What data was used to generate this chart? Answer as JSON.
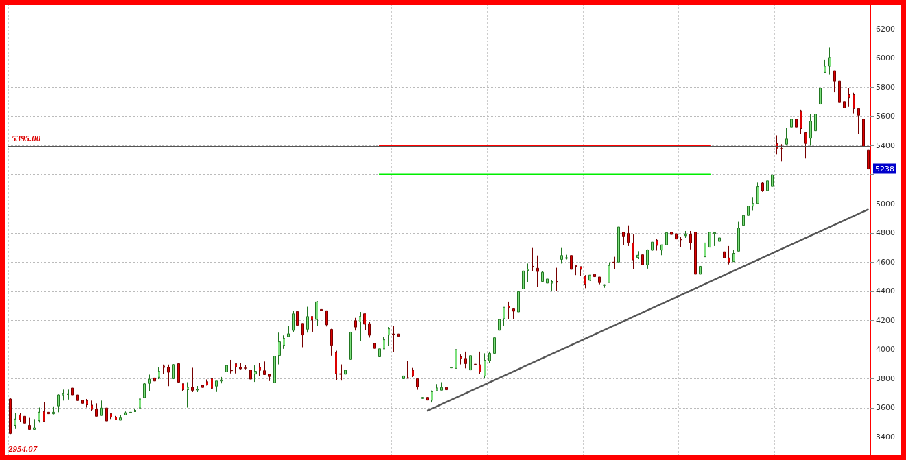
{
  "chart_data": {
    "type": "candlestick",
    "categories": [
      null,
      null,
      null,
      null,
      null,
      null,
      null,
      null,
      null,
      null,
      null,
      null,
      null,
      null,
      null,
      null,
      null,
      null,
      null,
      null,
      null,
      null,
      null,
      null,
      null,
      null,
      null,
      null,
      null,
      null,
      null,
      null,
      null,
      null,
      null,
      null,
      null,
      null,
      null,
      null,
      null,
      null,
      null,
      null,
      null,
      null,
      null,
      null,
      null,
      null,
      null,
      null,
      null,
      null,
      null,
      null,
      null,
      null,
      null,
      null,
      null,
      null,
      null,
      null,
      null,
      null,
      null,
      null,
      null,
      null,
      null,
      null,
      null,
      null,
      null,
      null,
      null,
      null,
      null,
      null,
      null,
      null,
      null,
      null,
      null,
      null,
      null,
      null,
      null,
      null,
      null,
      null,
      null,
      null,
      null,
      null,
      null,
      null,
      null,
      null,
      null,
      null,
      null,
      null,
      null,
      null,
      null,
      null,
      null,
      null,
      null,
      null,
      null,
      null,
      null,
      null,
      null,
      null,
      null,
      null,
      null,
      null,
      null,
      null,
      null,
      null,
      null,
      null,
      null,
      null,
      null,
      null,
      null,
      null,
      null,
      null,
      null,
      null,
      null,
      null,
      null,
      null,
      null,
      null,
      null,
      null,
      null,
      null,
      null,
      null,
      null,
      null,
      null,
      null,
      null,
      null,
      null,
      null,
      null,
      null,
      null,
      null,
      null,
      null,
      null,
      null,
      null,
      null,
      null,
      null,
      null,
      null,
      null,
      null,
      null,
      null,
      null,
      null,
      null,
      null
    ],
    "ohlc": [
      [
        3661,
        3665,
        3420,
        3424
      ],
      [
        3480,
        3563,
        3455,
        3523
      ],
      [
        3551,
        3566,
        3503,
        3518
      ],
      [
        3542,
        3566,
        3463,
        3495
      ],
      [
        3480,
        3531,
        3452,
        3452
      ],
      [
        3452,
        3523,
        3452,
        3463
      ],
      [
        3512,
        3602,
        3499,
        3570
      ],
      [
        3575,
        3638,
        3503,
        3507
      ],
      [
        3570,
        3632,
        3544,
        3559
      ],
      [
        3559,
        3610,
        3555,
        3570
      ],
      [
        3613,
        3692,
        3570,
        3689
      ],
      [
        3689,
        3725,
        3650,
        3700
      ],
      [
        3692,
        3725,
        3657,
        3697
      ],
      [
        3736,
        3738,
        3638,
        3689
      ],
      [
        3689,
        3700,
        3638,
        3650
      ],
      [
        3653,
        3700,
        3631,
        3631
      ],
      [
        3650,
        3661,
        3602,
        3621
      ],
      [
        3618,
        3650,
        3578,
        3590
      ],
      [
        3591,
        3631,
        3542,
        3542
      ],
      [
        3547,
        3650,
        3547,
        3599
      ],
      [
        3599,
        3599,
        3507,
        3510
      ],
      [
        3559,
        3559,
        3523,
        3536
      ],
      [
        3536,
        3544,
        3515,
        3518
      ],
      [
        3515,
        3551,
        3515,
        3531
      ],
      [
        3551,
        3575,
        3551,
        3567
      ],
      [
        3567,
        3613,
        3555,
        3570
      ],
      [
        3574,
        3594,
        3574,
        3583
      ],
      [
        3599,
        3661,
        3599,
        3661
      ],
      [
        3670,
        3772,
        3670,
        3765
      ],
      [
        3768,
        3828,
        3717,
        3797
      ],
      [
        3805,
        3970,
        3784,
        3784
      ],
      [
        3810,
        3877,
        3797,
        3850
      ],
      [
        3886,
        3897,
        3831,
        3878
      ],
      [
        3878,
        3897,
        3749,
        3844
      ],
      [
        3800,
        3900,
        3797,
        3897
      ],
      [
        3903,
        3903,
        3768,
        3776
      ],
      [
        3765,
        3765,
        3715,
        3725
      ],
      [
        3725,
        3776,
        3602,
        3741
      ],
      [
        3741,
        3875,
        3708,
        3720
      ],
      [
        3722,
        3750,
        3708,
        3728
      ],
      [
        3755,
        3755,
        3718,
        3740
      ],
      [
        3779,
        3795,
        3753,
        3757
      ],
      [
        3800,
        3800,
        3730,
        3735
      ],
      [
        3749,
        3784,
        3709,
        3784
      ],
      [
        3784,
        3812,
        3768,
        3792
      ],
      [
        3847,
        3891,
        3807,
        3891
      ],
      [
        3858,
        3929,
        3836,
        3855
      ],
      [
        3902,
        3902,
        3836,
        3881
      ],
      [
        3878,
        3910,
        3864,
        3868
      ],
      [
        3874,
        3894,
        3864,
        3871
      ],
      [
        3860,
        3883,
        3797,
        3797
      ],
      [
        3832,
        3891,
        3778,
        3851
      ],
      [
        3878,
        3910,
        3820,
        3858
      ],
      [
        3855,
        3918,
        3828,
        3828
      ],
      [
        3831,
        3831,
        3784,
        3815
      ],
      [
        3773,
        3981,
        3773,
        3954
      ],
      [
        3959,
        4116,
        3898,
        4053
      ],
      [
        4029,
        4097,
        4005,
        4076
      ],
      [
        4089,
        4163,
        4089,
        4108
      ],
      [
        4131,
        4266,
        4119,
        4245
      ],
      [
        4261,
        4443,
        4103,
        4166
      ],
      [
        4179,
        4179,
        4016,
        4100
      ],
      [
        4139,
        4293,
        4116,
        4226
      ],
      [
        4226,
        4226,
        4122,
        4203
      ],
      [
        4206,
        4332,
        4163,
        4327
      ],
      [
        4275,
        4277,
        4158,
        4268
      ],
      [
        4266,
        4266,
        4158,
        4169
      ],
      [
        4138,
        4142,
        3958,
        4029
      ],
      [
        3981,
        3992,
        3792,
        3834
      ],
      [
        3834,
        3898,
        3787,
        3830
      ],
      [
        3831,
        3909,
        3806,
        3858
      ],
      [
        3932,
        4122,
        3932,
        4119
      ],
      [
        4198,
        4217,
        4130,
        4154
      ],
      [
        4190,
        4258,
        4060,
        4226
      ],
      [
        4245,
        4245,
        4135,
        4174
      ],
      [
        4177,
        4190,
        4082,
        4098
      ],
      [
        4043,
        4043,
        3932,
        4008
      ],
      [
        3950,
        4005,
        3942,
        4005
      ],
      [
        4005,
        4084,
        4005,
        4067
      ],
      [
        4100,
        4154,
        4027,
        4142
      ],
      [
        4107,
        4163,
        3984,
        4103
      ],
      [
        4107,
        4182,
        4068,
        4090
      ],
      [
        3800,
        3863,
        3782,
        3819
      ],
      [
        3806,
        3924,
        3803,
        3803
      ],
      [
        3858,
        3874,
        3811,
        3819
      ],
      [
        3800,
        3800,
        3724,
        3744
      ],
      [
        3664,
        3672,
        3610,
        3672
      ],
      [
        3672,
        3681,
        3653,
        3653
      ],
      [
        3653,
        3719,
        3637,
        3711
      ],
      [
        3721,
        3763,
        3721,
        3736
      ],
      [
        3721,
        3776,
        3721,
        3740
      ],
      [
        3740,
        3778,
        3713,
        3724
      ],
      [
        3874,
        3879,
        3819,
        3879
      ],
      [
        3871,
        4000,
        3871,
        4000
      ],
      [
        3950,
        3966,
        3898,
        3939
      ],
      [
        3939,
        3986,
        3871,
        3903
      ],
      [
        3860,
        3958,
        3839,
        3958
      ],
      [
        3900,
        3942,
        3882,
        3898
      ],
      [
        3895,
        3986,
        3831,
        3847
      ],
      [
        3819,
        3974,
        3803,
        3926
      ],
      [
        3923,
        3986,
        3907,
        3974
      ],
      [
        3974,
        4136,
        3966,
        4081
      ],
      [
        4132,
        4216,
        4124,
        4206
      ],
      [
        4211,
        4290,
        4164,
        4290
      ],
      [
        4298,
        4329,
        4211,
        4287
      ],
      [
        4279,
        4279,
        4208,
        4263
      ],
      [
        4258,
        4397,
        4255,
        4397
      ],
      [
        4416,
        4598,
        4397,
        4539
      ],
      [
        4542,
        4590,
        4464,
        4550
      ],
      [
        4571,
        4697,
        4539,
        4566
      ],
      [
        4558,
        4645,
        4432,
        4535
      ],
      [
        4467,
        4539,
        4464,
        4530
      ],
      [
        4456,
        4495,
        4452,
        4484
      ],
      [
        4456,
        4476,
        4403,
        4467
      ],
      [
        4467,
        4561,
        4403,
        4462
      ],
      [
        4618,
        4697,
        4590,
        4645
      ],
      [
        4625,
        4650,
        4618,
        4630
      ],
      [
        4645,
        4645,
        4514,
        4550
      ],
      [
        4577,
        4577,
        4511,
        4571
      ],
      [
        4569,
        4569,
        4503,
        4550
      ],
      [
        4503,
        4511,
        4421,
        4448
      ],
      [
        4475,
        4511,
        4471,
        4511
      ],
      [
        4516,
        4566,
        4456,
        4500
      ],
      [
        4498,
        4498,
        4448,
        4459
      ],
      [
        4440,
        4448,
        4424,
        4445
      ],
      [
        4460,
        4598,
        4460,
        4577
      ],
      [
        4600,
        4636,
        4552,
        4597
      ],
      [
        4600,
        4841,
        4576,
        4841
      ],
      [
        4805,
        4805,
        4718,
        4778
      ],
      [
        4797,
        4852,
        4710,
        4734
      ],
      [
        4731,
        4789,
        4552,
        4615
      ],
      [
        4631,
        4675,
        4620,
        4647
      ],
      [
        4650,
        4650,
        4505,
        4581
      ],
      [
        4581,
        4687,
        4555,
        4683
      ],
      [
        4682,
        4737,
        4679,
        4737
      ],
      [
        4750,
        4761,
        4679,
        4715
      ],
      [
        4683,
        4718,
        4647,
        4718
      ],
      [
        4718,
        4802,
        4718,
        4802
      ],
      [
        4805,
        4818,
        4781,
        4789
      ],
      [
        4794,
        4818,
        4721,
        4758
      ],
      [
        4758,
        4773,
        4702,
        4753
      ],
      [
        4781,
        4813,
        4766,
        4789
      ],
      [
        4789,
        4813,
        4687,
        4731
      ],
      [
        4805,
        4813,
        4517,
        4517
      ],
      [
        4517,
        4571,
        4442,
        4571
      ],
      [
        4636,
        4731,
        4636,
        4731
      ],
      [
        4702,
        4805,
        4702,
        4805
      ],
      [
        4795,
        4805,
        4710,
        4802
      ],
      [
        4742,
        4789,
        4726,
        4766
      ],
      [
        4671,
        4694,
        4620,
        4628
      ],
      [
        4628,
        4710,
        4584,
        4600
      ],
      [
        4603,
        4683,
        4603,
        4660
      ],
      [
        4675,
        4876,
        4675,
        4833
      ],
      [
        4852,
        4990,
        4852,
        4920
      ],
      [
        4920,
        4993,
        4884,
        4984
      ],
      [
        4984,
        5042,
        4952,
        5002
      ],
      [
        5002,
        5145,
        5002,
        5116
      ],
      [
        5142,
        5150,
        5082,
        5090
      ],
      [
        5091,
        5157,
        5082,
        5157
      ],
      [
        5118,
        5228,
        5094,
        5197
      ],
      [
        5413,
        5469,
        5338,
        5381
      ],
      [
        5378,
        5409,
        5291,
        5375
      ],
      [
        5409,
        5520,
        5402,
        5444
      ],
      [
        5527,
        5661,
        5512,
        5580
      ],
      [
        5580,
        5646,
        5491,
        5527
      ],
      [
        5635,
        5646,
        5480,
        5516
      ],
      [
        5488,
        5488,
        5310,
        5414
      ],
      [
        5449,
        5614,
        5398,
        5567
      ],
      [
        5501,
        5661,
        5496,
        5614
      ],
      [
        5685,
        5842,
        5685,
        5792
      ],
      [
        5902,
        5989,
        5898,
        5942
      ],
      [
        5942,
        6071,
        5887,
        6003
      ],
      [
        5913,
        5913,
        5767,
        5842
      ],
      [
        5842,
        5842,
        5527,
        5696
      ],
      [
        5698,
        5698,
        5583,
        5657
      ],
      [
        5751,
        5795,
        5665,
        5727
      ],
      [
        5751,
        5764,
        5619,
        5653
      ],
      [
        5653,
        5653,
        5477,
        5606
      ],
      [
        5580,
        5580,
        5365,
        5389
      ],
      [
        5367,
        5381,
        5137,
        5238
      ]
    ],
    "series": [
      {
        "type": "line",
        "color": "#ff0000",
        "values": [
          null,
          null,
          null,
          null,
          null,
          null,
          null,
          null,
          null,
          null,
          null,
          null,
          null,
          null,
          null,
          null,
          null,
          null,
          null,
          null,
          null,
          null,
          null,
          null,
          null,
          null,
          null,
          null,
          null,
          null,
          null,
          null,
          null,
          null,
          null,
          null,
          null,
          null,
          null,
          null,
          null,
          null,
          null,
          null,
          null,
          null,
          null,
          null,
          null,
          null,
          null,
          null,
          null,
          null,
          null,
          null,
          null,
          null,
          null,
          null,
          null,
          null,
          null,
          null,
          null,
          null,
          null,
          null,
          null,
          null,
          null,
          null,
          null,
          null,
          null,
          null,
          null,
          5395,
          null,
          null,
          null,
          null,
          null,
          null,
          null,
          null,
          null,
          null,
          null,
          null,
          null,
          null,
          null,
          null,
          null,
          null,
          null,
          null,
          null,
          null,
          null,
          null,
          null,
          null,
          null,
          null,
          null,
          null,
          null,
          null,
          null,
          null,
          null,
          null,
          null,
          null,
          null,
          null,
          null,
          null,
          null,
          null,
          null,
          null,
          null,
          null,
          null,
          null,
          null,
          null,
          null,
          null,
          null,
          null,
          null,
          null,
          null,
          null,
          null,
          null,
          null,
          null,
          null,
          null,
          null,
          null,
          5395,
          null,
          null,
          null,
          null,
          null,
          null,
          null,
          null,
          null,
          null,
          null,
          null,
          null,
          null,
          null,
          null,
          null,
          null,
          null,
          null,
          null,
          null,
          null,
          null,
          null,
          null,
          null,
          null,
          null,
          null,
          null,
          null,
          null
        ]
      },
      {
        "type": "line",
        "color": "#00ee00",
        "values": [
          null,
          null,
          null,
          null,
          null,
          null,
          null,
          null,
          null,
          null,
          null,
          null,
          null,
          null,
          null,
          null,
          null,
          null,
          null,
          null,
          null,
          null,
          null,
          null,
          null,
          null,
          null,
          null,
          null,
          null,
          null,
          null,
          null,
          null,
          null,
          null,
          null,
          null,
          null,
          null,
          null,
          null,
          null,
          null,
          null,
          null,
          null,
          null,
          null,
          null,
          null,
          null,
          null,
          null,
          null,
          null,
          null,
          null,
          null,
          null,
          null,
          null,
          null,
          null,
          null,
          null,
          null,
          null,
          null,
          null,
          null,
          null,
          null,
          null,
          null,
          null,
          null,
          5200,
          null,
          null,
          null,
          null,
          null,
          null,
          null,
          null,
          null,
          null,
          null,
          null,
          null,
          null,
          null,
          null,
          null,
          null,
          null,
          null,
          null,
          null,
          null,
          null,
          null,
          null,
          null,
          null,
          null,
          null,
          null,
          null,
          null,
          null,
          null,
          null,
          null,
          null,
          null,
          null,
          null,
          null,
          null,
          null,
          null,
          null,
          null,
          null,
          null,
          null,
          null,
          null,
          null,
          null,
          null,
          null,
          null,
          null,
          null,
          null,
          null,
          null,
          null,
          null,
          null,
          null,
          null,
          null,
          5200,
          null,
          null,
          null,
          null,
          null,
          null,
          null,
          null,
          null,
          null,
          null,
          null,
          null,
          null,
          null,
          null,
          null,
          null,
          null,
          null,
          null,
          null,
          null,
          null,
          null,
          null,
          null,
          null,
          null,
          null,
          null,
          null,
          null
        ]
      },
      {
        "type": "line",
        "color": "#555555",
        "values": [
          null,
          null,
          null,
          null,
          null,
          null,
          null,
          null,
          null,
          null,
          null,
          null,
          null,
          null,
          null,
          null,
          null,
          null,
          null,
          null,
          null,
          null,
          null,
          null,
          null,
          null,
          null,
          null,
          null,
          null,
          null,
          null,
          null,
          null,
          null,
          null,
          null,
          null,
          null,
          null,
          null,
          null,
          null,
          null,
          null,
          null,
          null,
          null,
          null,
          null,
          null,
          null,
          null,
          null,
          null,
          null,
          null,
          null,
          null,
          null,
          null,
          null,
          null,
          null,
          null,
          null,
          null,
          null,
          null,
          null,
          null,
          null,
          null,
          null,
          null,
          null,
          null,
          null,
          null,
          null,
          null,
          null,
          null,
          null,
          null,
          null,
          null,
          3580,
          null,
          null,
          null,
          null,
          null,
          null,
          null,
          null,
          null,
          null,
          null,
          null,
          null,
          null,
          null,
          null,
          null,
          null,
          null,
          null,
          null,
          null,
          null,
          null,
          null,
          null,
          null,
          null,
          null,
          null,
          null,
          null,
          null,
          null,
          null,
          null,
          null,
          null,
          null,
          null,
          null,
          null,
          null,
          null,
          null,
          null,
          null,
          null,
          null,
          null,
          null,
          null,
          null,
          null,
          null,
          null,
          null,
          null,
          null,
          null,
          null,
          null,
          null,
          null,
          null,
          null,
          null,
          null,
          null,
          null,
          null,
          null,
          null,
          null,
          null,
          null,
          null,
          null,
          null,
          null,
          null,
          null,
          null,
          null,
          null,
          null,
          null,
          null,
          null,
          null,
          null,
          4960
        ]
      }
    ],
    "ylim": [
      3280,
      6360
    ],
    "yticks": [
      3400,
      3600,
      3800,
      4000,
      4200,
      4400,
      4600,
      4800,
      5000,
      {
        "value": 5200,
        "label": null
      },
      5400,
      5600,
      5800,
      6000,
      6200
    ],
    "ref_lines": [
      {
        "axis": "y",
        "value": 5395,
        "label": "5395.00",
        "color": "#555555"
      }
    ],
    "annotations": [
      "2954.07",
      "5238"
    ],
    "grid": true,
    "tick_labels": "y"
  }
}
